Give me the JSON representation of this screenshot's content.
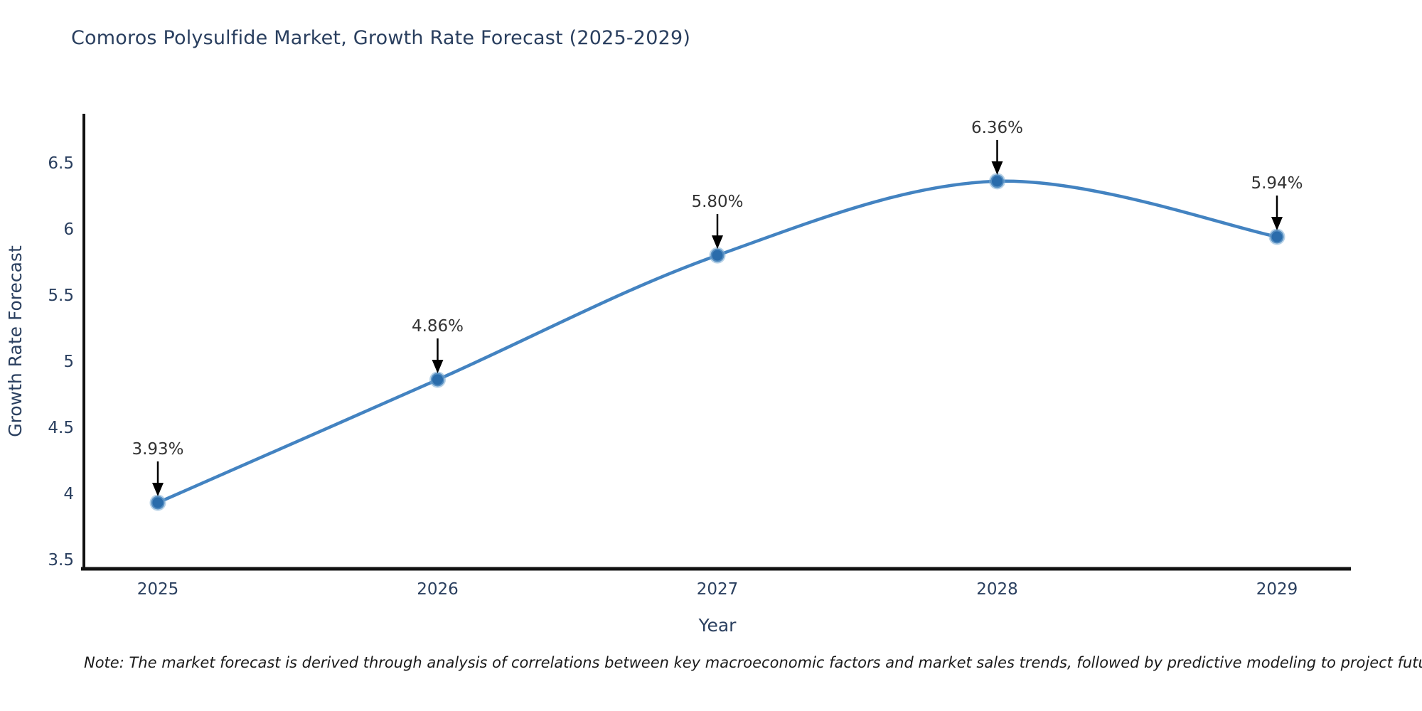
{
  "title": "Comoros Polysulfide Market, Growth Rate Forecast (2025-2029)",
  "note": "Note: The market forecast is derived through analysis of correlations between key macroeconomic factors and market sales trends, followed by predictive modeling to project future sales",
  "colors": {
    "title_text": "#2a3f5f",
    "axis_text": "#2a3f5f",
    "annotation_text": "#333333",
    "arrow": "#000000",
    "spine": "#111111",
    "line": "#4383c1",
    "marker_fill": "#2a6cab",
    "marker_edge": "#7aabd4",
    "note_text": "#1a1a1a",
    "background": "#ffffff"
  },
  "chart_data": {
    "type": "line",
    "title": "Comoros Polysulfide Market, Growth Rate Forecast (2025-2029)",
    "xlabel": "Year",
    "ylabel": "Growth Rate Forecast",
    "categories": [
      "2025",
      "2026",
      "2027",
      "2028",
      "2029"
    ],
    "series": [
      {
        "name": "Growth Rate Forecast",
        "values": [
          3.93,
          4.86,
          5.8,
          6.36,
          5.94
        ],
        "data_labels": [
          "3.93%",
          "4.86%",
          "5.80%",
          "6.36%",
          "5.94%"
        ]
      }
    ],
    "y_ticks": [
      "3.5",
      "4",
      "4.5",
      "5",
      "5.5",
      "6",
      "6.5"
    ],
    "y_tick_values": [
      3.5,
      4,
      4.5,
      5,
      5.5,
      6,
      6.5
    ],
    "ylim": [
      3.43,
      6.87
    ],
    "grid": false,
    "legend": "none",
    "annotation_style": "value label with down arrow to marker",
    "curve": "smooth spline"
  }
}
